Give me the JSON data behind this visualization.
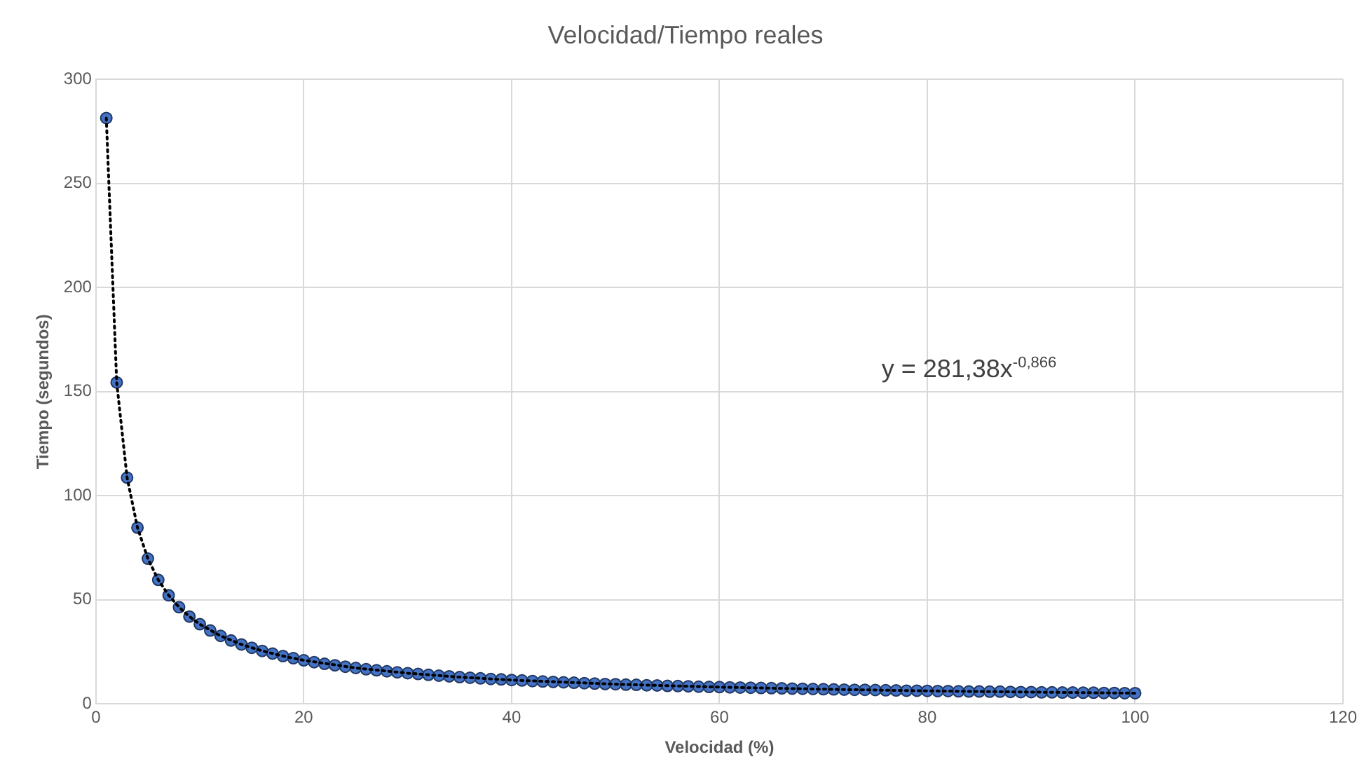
{
  "chart_data": {
    "type": "scatter",
    "title": "Velocidad/Tiempo reales",
    "xlabel": "Velocidad (%)",
    "ylabel": "Tiempo (segundos)",
    "annotations": [
      "y = 281,38x$^{-0,866}$"
    ],
    "x": [
      1,
      2,
      3,
      4,
      5,
      6,
      7,
      8,
      9,
      10,
      11,
      12,
      13,
      14,
      15,
      16,
      17,
      18,
      19,
      20,
      21,
      22,
      23,
      24,
      25,
      26,
      27,
      28,
      29,
      30,
      31,
      32,
      33,
      34,
      35,
      36,
      37,
      38,
      39,
      40,
      41,
      42,
      43,
      44,
      45,
      46,
      47,
      48,
      49,
      50,
      51,
      52,
      53,
      54,
      55,
      56,
      57,
      58,
      59,
      60,
      61,
      62,
      63,
      64,
      65,
      66,
      67,
      68,
      69,
      70,
      71,
      72,
      73,
      74,
      75,
      76,
      77,
      78,
      79,
      80,
      81,
      82,
      83,
      84,
      85,
      86,
      87,
      88,
      89,
      90,
      91,
      92,
      93,
      94,
      95,
      96,
      97,
      98,
      99,
      100
    ],
    "series": [
      {
        "color": "#4472c4",
        "values": [
          281.4,
          154.4,
          108.7,
          84.7,
          69.8,
          59.6,
          52.2,
          46.5,
          42.0,
          38.3,
          35.3,
          32.7,
          30.5,
          28.6,
          27.0,
          25.5,
          24.2,
          23.0,
          22.0,
          21.0,
          20.1,
          19.3,
          18.6,
          17.9,
          17.3,
          16.7,
          16.2,
          15.7,
          15.2,
          14.8,
          14.4,
          14.0,
          13.6,
          13.3,
          12.9,
          12.6,
          12.3,
          12.0,
          11.8,
          11.5,
          11.3,
          11.0,
          10.8,
          10.6,
          10.4,
          10.2,
          10.0,
          9.8,
          9.6,
          9.5,
          9.3,
          9.2,
          9.0,
          8.9,
          8.7,
          8.6,
          8.5,
          8.3,
          8.2,
          8.1,
          8.0,
          7.9,
          7.8,
          7.7,
          7.6,
          7.5,
          7.4,
          7.3,
          7.2,
          7.1,
          7.0,
          6.9,
          6.8,
          6.8,
          6.7,
          6.6,
          6.5,
          6.4,
          6.4,
          6.3,
          6.2,
          6.2,
          6.1,
          6.0,
          6.0,
          5.9,
          5.9,
          5.8,
          5.7,
          5.7,
          5.6,
          5.6,
          5.5,
          5.5,
          5.4,
          5.4,
          5.3,
          5.3,
          5.2,
          5.2
        ]
      },
      {
        "type": "line",
        "color": "#000000",
        "line_style": "dotted",
        "marker": "none",
        "x": [
          1,
          2,
          3,
          4,
          5,
          6,
          7,
          8,
          9,
          10,
          12,
          14,
          16,
          18,
          20,
          25,
          30,
          35,
          40,
          50,
          60,
          70,
          80,
          90,
          100
        ],
        "values": [
          281.4,
          154.4,
          108.7,
          84.7,
          69.8,
          59.6,
          52.2,
          46.5,
          42.0,
          38.3,
          32.7,
          28.6,
          25.5,
          23.0,
          21.0,
          17.3,
          14.8,
          12.9,
          11.5,
          9.5,
          8.1,
          7.1,
          6.3,
          5.7,
          5.2
        ]
      }
    ],
    "xlim": [
      0,
      120
    ],
    "xticks": [
      0,
      20,
      40,
      60,
      80,
      100,
      120
    ],
    "ylim": [
      0,
      300
    ],
    "yticks": [
      0,
      50,
      100,
      150,
      200,
      250,
      300
    ],
    "grid": true,
    "legend": false,
    "marker": "circle"
  }
}
